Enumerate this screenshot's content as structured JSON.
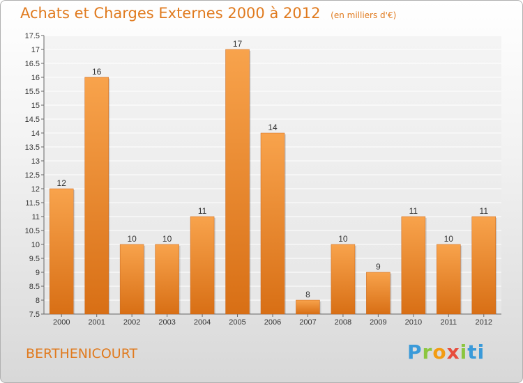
{
  "header": {
    "title": "Achats et Charges Externes 2000 à 2012",
    "subtitle": "(en milliers d'€)"
  },
  "footer": {
    "commune": "BERTHENICOURT",
    "brand_letters": [
      "P",
      "r",
      "o",
      "x",
      "i",
      "t",
      "i"
    ]
  },
  "colors": {
    "bar_top": "#f8a34c",
    "bar_bottom": "#d86f15",
    "title": "#e07a1e",
    "grid": "#ffffff"
  },
  "chart_data": {
    "type": "bar",
    "title": "Achats et Charges Externes 2000 à 2012",
    "subtitle": "(en milliers d'€)",
    "categories": [
      "2000",
      "2001",
      "2002",
      "2003",
      "2004",
      "2005",
      "2006",
      "2007",
      "2008",
      "2009",
      "2010",
      "2011",
      "2012"
    ],
    "values": [
      12,
      16,
      10,
      10,
      11,
      17,
      14,
      8,
      10,
      9,
      11,
      10,
      11
    ],
    "data_labels": [
      "12",
      "16",
      "10",
      "10",
      "11",
      "17",
      "14",
      "8",
      "10",
      "9",
      "11",
      "10",
      "11"
    ],
    "ylim": [
      7.5,
      17.5
    ],
    "yticks": [
      "7.5",
      "8",
      "8.5",
      "9",
      "9.5",
      "10",
      "10.5",
      "11",
      "11.5",
      "12",
      "12.5",
      "13",
      "13.5",
      "14",
      "14.5",
      "15",
      "15.5",
      "16",
      "16.5",
      "17",
      "17.5"
    ],
    "grid": true,
    "legend": "none"
  }
}
